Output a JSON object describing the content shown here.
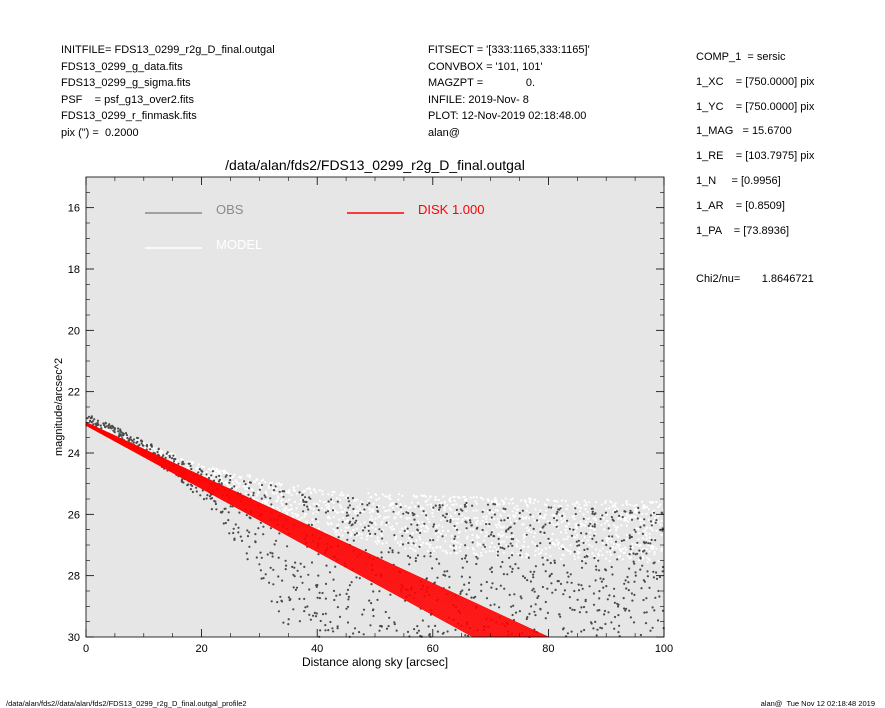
{
  "header_left": [
    "INITFILE= FDS13_0299_r2g_D_final.outgal",
    "FDS13_0299_g_data.fits",
    "FDS13_0299_g_sigma.fits",
    "PSF    = psf_g13_over2.fits",
    "FDS13_0299_r_finmask.fits",
    "pix (\") =  0.2000"
  ],
  "header_mid": [
    "FITSECT = '[333:1165,333:1165]'",
    "CONVBOX = '101, 101'",
    "MAGZPT =              0.",
    "INFILE: 2019-Nov- 8",
    "PLOT: 12-Nov-2019 02:18:48.00",
    "alan@"
  ],
  "params": [
    "COMP_1  = sersic",
    "1_XC    = [750.0000] pix",
    "1_YC    = [750.0000] pix",
    "1_MAG   = 15.6700",
    "1_RE    = [103.7975] pix",
    "1_N     = [0.9956]",
    "1_AR    = [0.8509]",
    "1_PA    = [73.8936]"
  ],
  "chi2": "Chi2/nu=       1.8646721",
  "footer_left": "/data/alan/fds2//data/alan/fds2/FDS13_0299_r2g_D_final.outgal_profile2",
  "footer_right": "alan@  Tue Nov 12 02:18:48 2019",
  "colors": {
    "obs": "#4a4a4a",
    "model": "#ffffff",
    "disk": "#ff0000",
    "background": "#e6e6e6"
  },
  "chart_data": {
    "type": "scatter",
    "title": "/data/alan/fds2/FDS13_0299_r2g_D_final.outgal",
    "xlabel": "Distance along sky [arcsec]",
    "ylabel": "magnitude/arcsec^2",
    "xlim": [
      0,
      100
    ],
    "ylim": [
      30,
      15
    ],
    "y_inverted": true,
    "grid": false,
    "x_ticks": [
      "0",
      "20",
      "40",
      "60",
      "80",
      "100"
    ],
    "y_ticks": [
      "16",
      "18",
      "20",
      "22",
      "24",
      "26",
      "28",
      "30"
    ],
    "legend": [
      {
        "label": "OBS",
        "color": "#8a8a8a"
      },
      {
        "label": "MODEL",
        "color": "#ffffff"
      },
      {
        "label": "DISK  1.000",
        "color": "#ff0000"
      }
    ],
    "series": [
      {
        "name": "OBS",
        "description_points": [
          [
            0,
            22.8
          ],
          [
            5,
            23.1
          ],
          [
            8,
            23.4
          ],
          [
            20,
            24.7
          ],
          [
            30,
            26.5
          ],
          [
            45,
            27.6
          ],
          [
            60,
            28.3
          ],
          [
            80,
            28.6
          ],
          [
            100,
            28.2
          ]
        ],
        "upper_envelope": [
          [
            0,
            22.7
          ],
          [
            20,
            24.5
          ],
          [
            40,
            25.4
          ],
          [
            60,
            25.6
          ],
          [
            100,
            25.8
          ]
        ],
        "lower_envelope": [
          [
            0,
            23.0
          ],
          [
            10,
            24.0
          ],
          [
            20,
            25.5
          ],
          [
            30,
            28.0
          ],
          [
            35,
            30.0
          ],
          [
            100,
            30.0
          ]
        ]
      },
      {
        "name": "MODEL",
        "upper_envelope": [
          [
            0,
            22.9
          ],
          [
            20,
            24.4
          ],
          [
            40,
            25.2
          ],
          [
            60,
            25.4
          ],
          [
            100,
            25.6
          ]
        ],
        "lower_envelope": [
          [
            0,
            23.2
          ],
          [
            20,
            25.0
          ],
          [
            40,
            26.6
          ],
          [
            60,
            27.3
          ],
          [
            100,
            27.6
          ]
        ]
      },
      {
        "name": "DISK  1.000",
        "upper_edge": [
          [
            0,
            23.0
          ],
          [
            80,
            30.0
          ]
        ],
        "lower_edge": [
          [
            0,
            23.1
          ],
          [
            67,
            30.0
          ]
        ]
      }
    ]
  }
}
